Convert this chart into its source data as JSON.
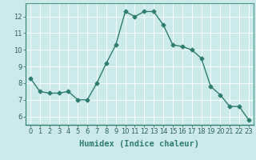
{
  "x": [
    0,
    1,
    2,
    3,
    4,
    5,
    6,
    7,
    8,
    9,
    10,
    11,
    12,
    13,
    14,
    15,
    16,
    17,
    18,
    19,
    20,
    21,
    22,
    23
  ],
  "y": [
    8.3,
    7.5,
    7.4,
    7.4,
    7.5,
    7.0,
    7.0,
    8.0,
    9.2,
    10.3,
    12.3,
    12.0,
    12.3,
    12.3,
    11.5,
    10.3,
    10.2,
    10.0,
    9.5,
    7.8,
    7.3,
    6.6,
    6.6,
    5.8
  ],
  "line_color": "#2e7d6e",
  "marker": "D",
  "marker_size": 2.5,
  "bg_color": "#cceaea",
  "grid_color": "#ffffff",
  "grid_minor_color": "#ddf3f3",
  "xlabel": "Humidex (Indice chaleur)",
  "xlim": [
    -0.5,
    23.5
  ],
  "ylim": [
    5.5,
    12.8
  ],
  "yticks": [
    6,
    7,
    8,
    9,
    10,
    11,
    12
  ],
  "xticks": [
    0,
    1,
    2,
    3,
    4,
    5,
    6,
    7,
    8,
    9,
    10,
    11,
    12,
    13,
    14,
    15,
    16,
    17,
    18,
    19,
    20,
    21,
    22,
    23
  ],
  "tick_fontsize": 6,
  "label_fontsize": 7.5,
  "line_width": 1.0,
  "grid_lw": 0.6,
  "spine_color": "#4a9a8a"
}
